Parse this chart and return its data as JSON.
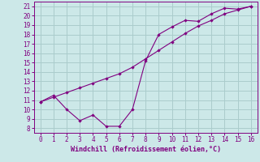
{
  "xlabel": "Windchill (Refroidissement éolien,°C)",
  "line1_x": [
    0,
    1,
    2,
    3,
    4,
    5,
    6,
    7,
    8,
    9,
    10,
    11,
    12,
    13,
    14,
    15,
    16
  ],
  "line1_y": [
    10.8,
    11.5,
    10.0,
    8.8,
    9.4,
    8.2,
    8.2,
    10.0,
    15.2,
    18.0,
    18.8,
    19.5,
    19.4,
    20.2,
    20.8,
    20.7,
    21.0
  ],
  "line2_x": [
    0,
    1,
    2,
    3,
    4,
    5,
    6,
    7,
    8,
    9,
    10,
    11,
    12,
    13,
    14,
    15,
    16
  ],
  "line2_y": [
    10.8,
    11.3,
    11.8,
    12.3,
    12.8,
    13.3,
    13.8,
    14.5,
    15.4,
    16.3,
    17.2,
    18.1,
    18.9,
    19.5,
    20.2,
    20.6,
    21.0
  ],
  "line_color": "#800080",
  "bg_color": "#cce8e8",
  "grid_color": "#aacccc",
  "xlim": [
    -0.5,
    16.5
  ],
  "ylim": [
    7.5,
    21.5
  ],
  "xticks": [
    0,
    1,
    2,
    3,
    4,
    5,
    6,
    7,
    8,
    9,
    10,
    11,
    12,
    13,
    14,
    15,
    16
  ],
  "yticks": [
    8,
    9,
    10,
    11,
    12,
    13,
    14,
    15,
    16,
    17,
    18,
    19,
    20,
    21
  ],
  "tick_color": "#800080",
  "label_color": "#800080",
  "fontsize_tick": 5.5,
  "fontsize_xlabel": 6.0
}
